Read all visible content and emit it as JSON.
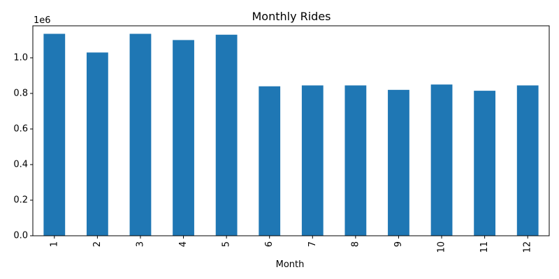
{
  "chart_data": {
    "type": "bar",
    "title": "Monthly Rides",
    "xlabel": "Month",
    "ylabel": "",
    "y_offset_label": "1e6",
    "categories": [
      "1",
      "2",
      "3",
      "4",
      "5",
      "6",
      "7",
      "8",
      "9",
      "10",
      "11",
      "12"
    ],
    "values": [
      1.135,
      1.03,
      1.135,
      1.1,
      1.13,
      0.84,
      0.845,
      0.845,
      0.82,
      0.85,
      0.815,
      0.845
    ],
    "ylim": [
      0,
      1.18
    ],
    "yticks": [
      0.0,
      0.2,
      0.4,
      0.6,
      0.8,
      1.0
    ],
    "ytick_labels": [
      "0.0",
      "0.2",
      "0.4",
      "0.6",
      "0.8",
      "1.0"
    ],
    "bar_color": "#1f77b4",
    "grid": false,
    "legend": "none"
  }
}
